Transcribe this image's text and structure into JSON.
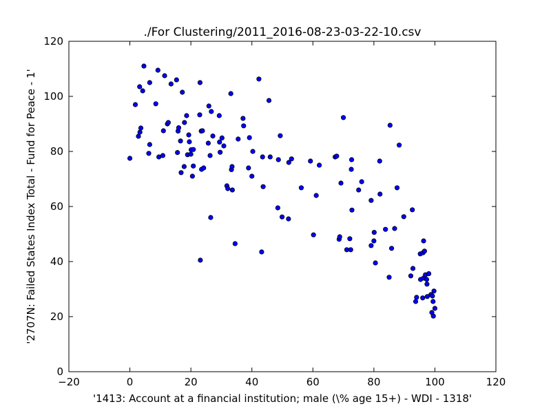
{
  "chart_data": {
    "type": "scatter",
    "title": "./For Clustering/2011_2016-08-23-03-22-10.csv",
    "xlabel": "'1413: Account at a financial institution; male  (\\% age 15+) - WDI - 1318'",
    "ylabel": "'2707N: Failed States Index Total - Fund for Peace - 1'",
    "xlim": [
      -20,
      120
    ],
    "ylim": [
      0,
      120
    ],
    "xticks": [
      -20,
      0,
      20,
      40,
      60,
      80,
      100,
      120
    ],
    "yticks": [
      0,
      20,
      40,
      60,
      80,
      100,
      120
    ],
    "xtick_labels": [
      "−20",
      "0",
      "20",
      "40",
      "60",
      "80",
      "100",
      "120"
    ],
    "ytick_labels": [
      "0",
      "20",
      "40",
      "60",
      "80",
      "100",
      "120"
    ],
    "grid": false,
    "marker_color": "#0000ff",
    "points": [
      [
        0,
        77.5
      ],
      [
        1.8,
        97
      ],
      [
        2.8,
        85.5
      ],
      [
        3.2,
        103.5
      ],
      [
        3.3,
        87
      ],
      [
        3.6,
        88.5
      ],
      [
        4.2,
        102
      ],
      [
        4.6,
        111
      ],
      [
        6.2,
        79.3
      ],
      [
        6.5,
        105
      ],
      [
        6.5,
        82.5
      ],
      [
        8.5,
        97.3
      ],
      [
        9.2,
        109.5
      ],
      [
        9.5,
        78
      ],
      [
        10.8,
        78.5
      ],
      [
        11,
        87.5
      ],
      [
        11.4,
        107.5
      ],
      [
        12.3,
        90
      ],
      [
        12.6,
        90.5
      ],
      [
        13.5,
        104.5
      ],
      [
        15.3,
        106
      ],
      [
        15.6,
        79.6
      ],
      [
        15.8,
        87.4
      ],
      [
        16,
        88.6
      ],
      [
        16.6,
        83.8
      ],
      [
        16.8,
        72.3
      ],
      [
        17.2,
        101.5
      ],
      [
        17.8,
        74.5
      ],
      [
        17.9,
        90.5
      ],
      [
        18.6,
        93
      ],
      [
        18.9,
        78.8
      ],
      [
        19.3,
        86
      ],
      [
        19.5,
        83.5
      ],
      [
        20,
        79
      ],
      [
        20.1,
        80.6
      ],
      [
        20.5,
        71
      ],
      [
        20.8,
        80.7
      ],
      [
        20.8,
        74.7
      ],
      [
        22.9,
        93.3
      ],
      [
        23,
        105
      ],
      [
        23.1,
        40.5
      ],
      [
        23.4,
        87.4
      ],
      [
        23.5,
        73.5
      ],
      [
        23.8,
        87.5
      ],
      [
        24.2,
        74
      ],
      [
        25.7,
        83
      ],
      [
        25.9,
        96.5
      ],
      [
        26.3,
        78.5
      ],
      [
        26.5,
        56
      ],
      [
        26.7,
        94.5
      ],
      [
        27.2,
        85.6
      ],
      [
        29.3,
        93
      ],
      [
        29.4,
        83.4
      ],
      [
        29.6,
        79.7
      ],
      [
        30.2,
        84.9
      ],
      [
        30.8,
        82
      ],
      [
        31.8,
        67.5
      ],
      [
        32.1,
        66.5
      ],
      [
        33.1,
        101
      ],
      [
        33.3,
        73.4
      ],
      [
        33.5,
        74.5
      ],
      [
        33.6,
        66
      ],
      [
        34.5,
        46.5
      ],
      [
        35.5,
        84.5
      ],
      [
        37.1,
        92
      ],
      [
        37.3,
        89.3
      ],
      [
        38.9,
        74
      ],
      [
        39.2,
        85
      ],
      [
        40,
        71
      ],
      [
        40.3,
        80
      ],
      [
        42.3,
        106.3
      ],
      [
        43.2,
        43.5
      ],
      [
        43.5,
        78
      ],
      [
        43.7,
        67.2
      ],
      [
        45.6,
        98.5
      ],
      [
        46,
        78
      ],
      [
        48.5,
        59.5
      ],
      [
        48.7,
        77
      ],
      [
        49.3,
        85.7
      ],
      [
        49.9,
        56.2
      ],
      [
        52,
        55.5
      ],
      [
        52.1,
        76
      ],
      [
        53,
        77.3
      ],
      [
        56.2,
        66.8
      ],
      [
        59.2,
        76.5
      ],
      [
        60.2,
        49.7
      ],
      [
        61.1,
        64
      ],
      [
        62.1,
        75
      ],
      [
        67.3,
        78
      ],
      [
        67.8,
        78.3
      ],
      [
        68.6,
        48.1
      ],
      [
        68.8,
        49
      ],
      [
        69.2,
        68.5
      ],
      [
        70,
        92.3
      ],
      [
        71.1,
        44.3
      ],
      [
        72.1,
        48.3
      ],
      [
        72.4,
        44.3
      ],
      [
        72.6,
        73.5
      ],
      [
        72.7,
        77
      ],
      [
        72.8,
        58.7
      ],
      [
        75,
        66
      ],
      [
        76,
        69
      ],
      [
        79.1,
        62.2
      ],
      [
        79.1,
        45.8
      ],
      [
        80,
        47.5
      ],
      [
        80.1,
        50.6
      ],
      [
        80.5,
        39.5
      ],
      [
        81.9,
        76.5
      ],
      [
        82,
        64.5
      ],
      [
        83.8,
        51.7
      ],
      [
        85,
        34.3
      ],
      [
        85.3,
        89.5
      ],
      [
        85.8,
        44.8
      ],
      [
        86.8,
        52
      ],
      [
        87.6,
        66.8
      ],
      [
        88.3,
        82.3
      ],
      [
        89.8,
        56.3
      ],
      [
        92.1,
        34.8
      ],
      [
        92.6,
        58.8
      ],
      [
        92.8,
        37.5
      ],
      [
        93.7,
        25.5
      ],
      [
        94,
        27
      ],
      [
        95.2,
        42.8
      ],
      [
        95.3,
        33.5
      ],
      [
        96,
        26.8
      ],
      [
        96.1,
        43.2
      ],
      [
        96.3,
        47.5
      ],
      [
        96.3,
        34
      ],
      [
        96.6,
        43.8
      ],
      [
        96.9,
        35.2
      ],
      [
        97.3,
        33.5
      ],
      [
        97.4,
        31.8
      ],
      [
        97.5,
        27.3
      ],
      [
        98,
        35.6
      ],
      [
        98.7,
        28
      ],
      [
        99,
        21.5
      ],
      [
        99.2,
        27.5
      ],
      [
        99.4,
        25.5
      ],
      [
        99.5,
        20.2
      ],
      [
        99.7,
        29.3
      ],
      [
        100,
        23
      ]
    ]
  }
}
